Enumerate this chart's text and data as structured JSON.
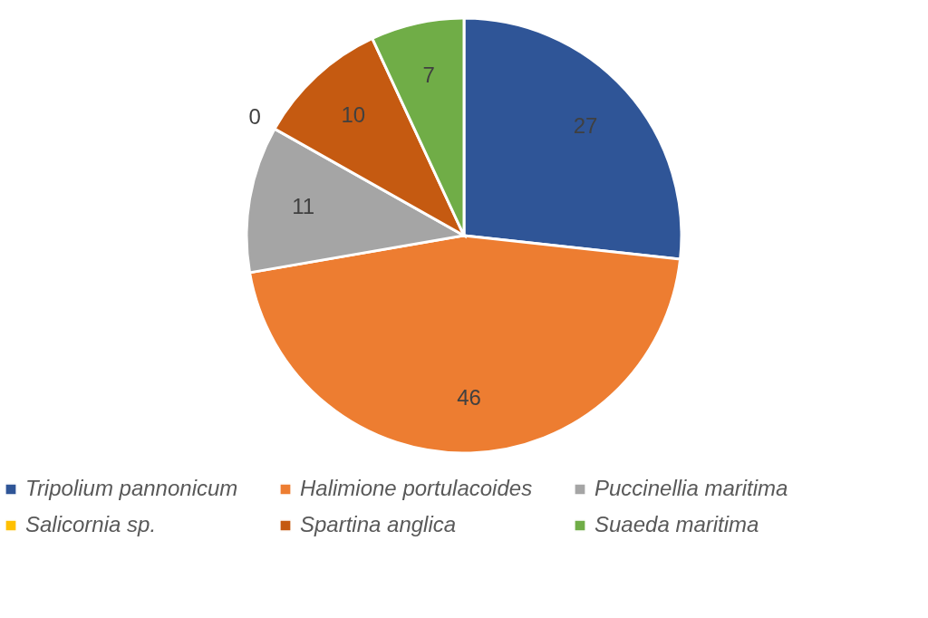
{
  "chart_data": {
    "type": "pie",
    "categories": [
      "Tripolium pannonicum",
      "Halimione portulacoides",
      "Puccinellia maritima",
      "Salicornia sp.",
      "Spartina anglica",
      "Suaeda maritima"
    ],
    "values": [
      27,
      46,
      11,
      0,
      10,
      7
    ],
    "colors": [
      "#2f5597",
      "#ed7d31",
      "#a5a5a5",
      "#ffc000",
      "#c55a11",
      "#70ad47"
    ],
    "value_labels": [
      "27",
      "46",
      "11",
      "0",
      "10",
      "7"
    ],
    "legend": "bottom"
  }
}
